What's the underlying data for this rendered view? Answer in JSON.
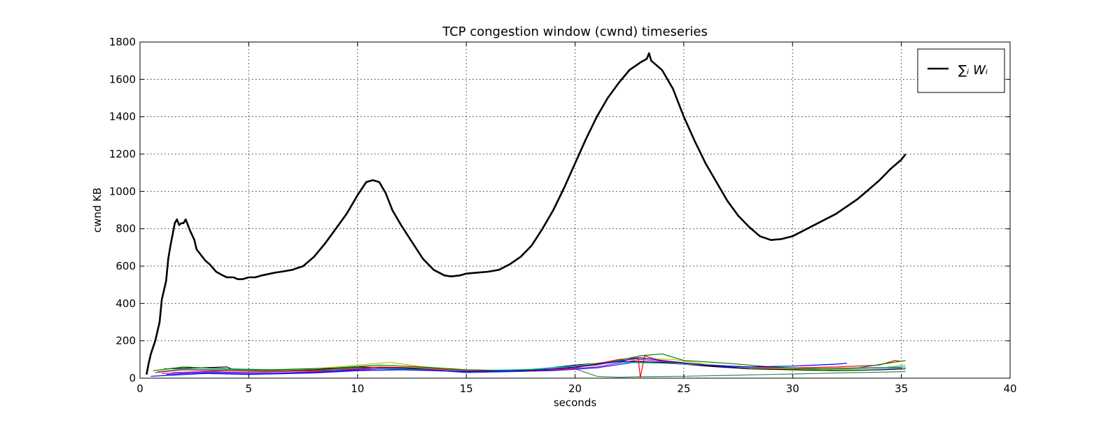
{
  "chart_data": {
    "type": "line",
    "title": "TCP congestion window (cwnd) timeseries",
    "xlabel": "seconds",
    "ylabel": "cwnd KB",
    "xlim": [
      0,
      40
    ],
    "ylim": [
      0,
      1800
    ],
    "xticks": [
      0,
      5,
      10,
      15,
      20,
      25,
      30,
      35,
      40
    ],
    "yticks": [
      0,
      200,
      400,
      600,
      800,
      1000,
      1200,
      1400,
      1600,
      1800
    ],
    "grid": true,
    "legend": {
      "position": "top-right",
      "entries": [
        "∑ᵢ Wᵢ"
      ]
    },
    "series": [
      {
        "name": "∑ᵢ Wᵢ",
        "color": "#000000",
        "emphasis": "thick",
        "x": [
          0.3,
          0.4,
          0.5,
          0.7,
          0.9,
          1.0,
          1.2,
          1.3,
          1.4,
          1.5,
          1.6,
          1.7,
          1.8,
          1.9,
          2.0,
          2.1,
          2.3,
          2.5,
          2.6,
          2.8,
          3.0,
          3.2,
          3.5,
          3.8,
          4.0,
          4.3,
          4.5,
          4.7,
          5.0,
          5.3,
          5.6,
          6.0,
          6.2,
          6.5,
          7.0,
          7.5,
          8.0,
          8.5,
          9.0,
          9.5,
          10.0,
          10.4,
          10.7,
          11.0,
          11.3,
          11.6,
          12.0,
          12.5,
          13.0,
          13.5,
          14.0,
          14.3,
          14.7,
          15.0,
          15.5,
          16.0,
          16.5,
          17.0,
          17.5,
          18.0,
          18.5,
          19.0,
          19.5,
          20.0,
          20.5,
          21.0,
          21.5,
          22.0,
          22.5,
          23.0,
          23.3,
          23.4,
          23.5,
          24.0,
          24.5,
          25.0,
          25.5,
          26.0,
          26.5,
          27.0,
          27.5,
          28.0,
          28.5,
          29.0,
          29.5,
          30.0,
          30.5,
          31.0,
          31.5,
          32.0,
          32.5,
          33.0,
          33.5,
          34.0,
          34.5,
          35.0,
          35.2
        ],
        "y": [
          20,
          80,
          130,
          200,
          300,
          420,
          520,
          640,
          710,
          770,
          830,
          850,
          820,
          830,
          830,
          850,
          790,
          740,
          690,
          660,
          630,
          610,
          570,
          550,
          540,
          540,
          530,
          530,
          540,
          540,
          550,
          560,
          565,
          570,
          580,
          600,
          650,
          720,
          800,
          880,
          980,
          1050,
          1060,
          1050,
          990,
          900,
          820,
          730,
          640,
          580,
          550,
          545,
          550,
          560,
          565,
          570,
          580,
          610,
          650,
          710,
          800,
          900,
          1020,
          1150,
          1280,
          1400,
          1500,
          1580,
          1650,
          1690,
          1710,
          1740,
          1700,
          1650,
          1550,
          1400,
          1270,
          1150,
          1050,
          950,
          870,
          810,
          760,
          740,
          745,
          760,
          790,
          820,
          850,
          880,
          920,
          960,
          1010,
          1060,
          1120,
          1170,
          1200
        ]
      },
      {
        "name": "",
        "color": "#0000ff",
        "x": [
          0.5,
          3,
          5,
          8,
          10,
          12,
          15,
          18,
          20,
          22,
          23,
          24,
          26,
          28,
          30,
          32,
          32.5
        ],
        "y": [
          10,
          25,
          20,
          28,
          40,
          45,
          35,
          40,
          60,
          90,
          110,
          95,
          70,
          60,
          65,
          75,
          80
        ]
      },
      {
        "name": "",
        "color": "#008000",
        "x": [
          0.6,
          2,
          4,
          6,
          9,
          11,
          13,
          15,
          17,
          19,
          21,
          23,
          24,
          25,
          27,
          29,
          31,
          33,
          35.2
        ],
        "y": [
          40,
          60,
          50,
          45,
          55,
          70,
          60,
          45,
          40,
          50,
          70,
          120,
          130,
          95,
          80,
          60,
          50,
          55,
          95
        ]
      },
      {
        "name": "",
        "color": "#ff0000",
        "x": [
          0.7,
          2,
          4,
          7,
          9,
          11,
          13,
          15,
          18,
          20,
          22,
          22.9,
          23.0,
          23.2,
          24,
          26,
          28,
          30,
          32,
          34,
          34.7,
          35
        ],
        "y": [
          30,
          45,
          40,
          38,
          45,
          60,
          55,
          40,
          38,
          55,
          100,
          110,
          5,
          120,
          90,
          70,
          60,
          55,
          60,
          70,
          95,
          90
        ]
      },
      {
        "name": "",
        "color": "#00bfbf",
        "x": [
          0.8,
          2,
          4,
          6,
          8,
          10,
          12,
          14,
          16,
          18,
          20,
          22,
          24,
          26,
          28,
          30,
          32,
          34,
          35.2
        ],
        "y": [
          35,
          50,
          45,
          40,
          42,
          55,
          50,
          38,
          42,
          48,
          65,
          85,
          80,
          70,
          60,
          55,
          50,
          55,
          60
        ]
      },
      {
        "name": "",
        "color": "#bfbf00",
        "x": [
          0.9,
          2,
          4,
          6,
          8,
          10,
          11.5,
          13,
          15,
          17,
          19,
          21,
          23,
          24.5,
          26,
          28,
          30,
          32,
          34,
          35.2
        ],
        "y": [
          45,
          60,
          50,
          45,
          50,
          70,
          85,
          60,
          45,
          42,
          50,
          80,
          105,
          100,
          75,
          55,
          50,
          45,
          55,
          70
        ]
      },
      {
        "name": "",
        "color": "#bf00bf",
        "x": [
          1.0,
          3,
          5,
          7,
          9,
          11,
          13,
          15,
          17,
          19,
          21,
          23,
          25,
          27,
          29,
          31,
          33,
          35.2
        ],
        "y": [
          25,
          35,
          30,
          28,
          35,
          50,
          45,
          35,
          40,
          45,
          60,
          100,
          80,
          65,
          55,
          50,
          55,
          60
        ]
      },
      {
        "name": "",
        "color": "#000000",
        "x": [
          1.1,
          2.5,
          4,
          4.3,
          6,
          8,
          10,
          12,
          14,
          16,
          18,
          20,
          22,
          24,
          26,
          28,
          30,
          32,
          34,
          35.2
        ],
        "y": [
          50,
          55,
          60,
          45,
          40,
          45,
          60,
          55,
          40,
          38,
          45,
          70,
          90,
          85,
          65,
          50,
          45,
          40,
          45,
          50
        ]
      },
      {
        "name": "",
        "color": "#1f1fff",
        "x": [
          1.2,
          3,
          5,
          7,
          9,
          11,
          13,
          15,
          17,
          19,
          21,
          23,
          25,
          27,
          29,
          31,
          33,
          35
        ],
        "y": [
          20,
          30,
          25,
          30,
          38,
          55,
          48,
          30,
          35,
          40,
          55,
          90,
          75,
          60,
          50,
          48,
          52,
          55
        ]
      },
      {
        "name": "",
        "color": "#2e8b57",
        "x": [
          1.5,
          4,
          6,
          9,
          11,
          13,
          15,
          17,
          19,
          20,
          21,
          22,
          23,
          25,
          27,
          29,
          31,
          33,
          35.2
        ],
        "y": [
          30,
          40,
          35,
          40,
          60,
          50,
          35,
          38,
          45,
          50,
          10,
          5,
          8,
          10,
          15,
          20,
          25,
          30,
          35
        ]
      }
    ]
  }
}
